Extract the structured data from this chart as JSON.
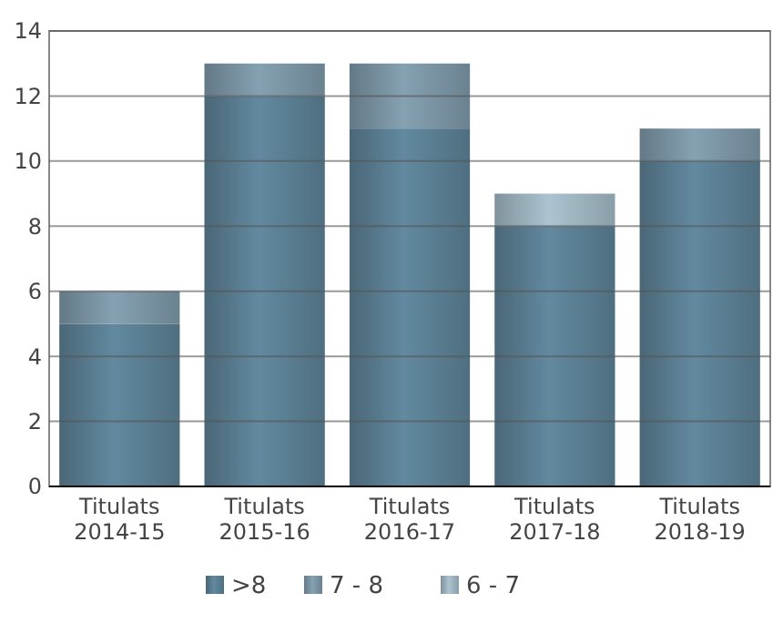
{
  "chart_data": {
    "type": "bar",
    "stacked": true,
    "categories": [
      "Titulats\n2014-15",
      "Titulats\n2015-16",
      "Titulats\n2016-17",
      "Titulats\n2017-18",
      "Titulats\n2018-19"
    ],
    "series": [
      {
        "name": ">8",
        "color": "#4f6f80",
        "values": [
          5,
          12,
          11,
          8,
          10
        ]
      },
      {
        "name": "7 - 8",
        "color": "#6b8290",
        "values": [
          1,
          1,
          2,
          0,
          1
        ]
      },
      {
        "name": "6 - 7",
        "color": "#8a9ea8",
        "values": [
          0,
          0,
          0,
          1,
          0
        ]
      }
    ],
    "ylim": [
      0,
      14
    ],
    "yticks": [
      0,
      2,
      4,
      6,
      8,
      10,
      12,
      14
    ],
    "grid": "y",
    "legend": "bottom"
  }
}
